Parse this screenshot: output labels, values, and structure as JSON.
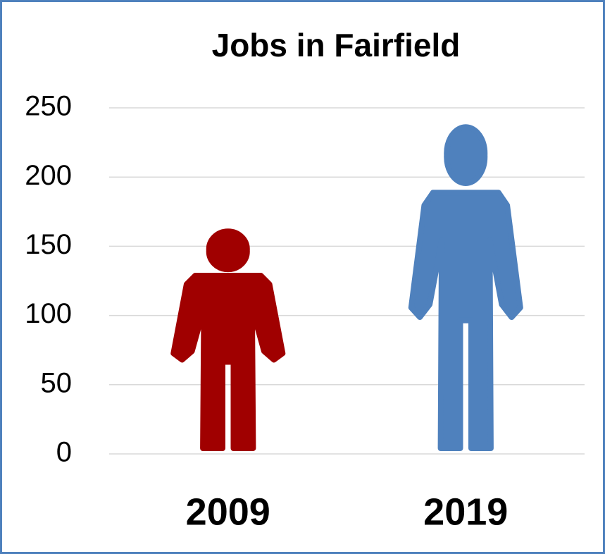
{
  "chart_data": {
    "type": "pictograph",
    "title": "Jobs in Fairfield",
    "categories": [
      "2009",
      "2019"
    ],
    "values": [
      160,
      235
    ],
    "colors": [
      "#a00000",
      "#4f81bd"
    ],
    "ylim": [
      0,
      250
    ],
    "yticks": [
      0,
      50,
      100,
      150,
      200,
      250
    ],
    "grid": true
  }
}
